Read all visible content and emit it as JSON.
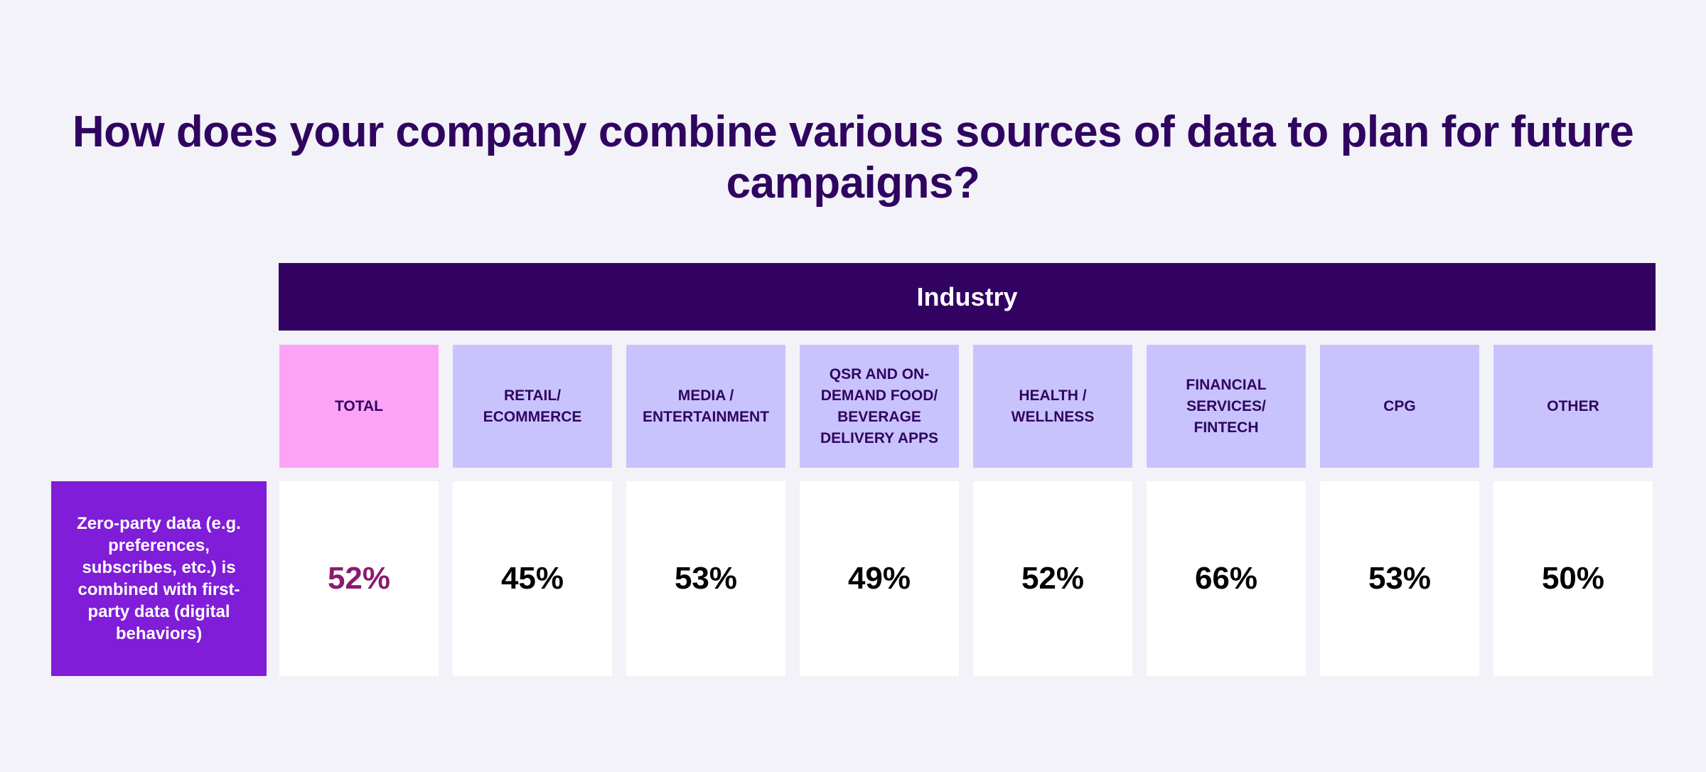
{
  "chart_data": {
    "type": "table",
    "title": "How does your company combine various sources of data to plan for future campaigns?",
    "column_group": "Industry",
    "columns": [
      "TOTAL",
      "RETAIL/\nECOMMERCE",
      "MEDIA /\nENTERTAINMENT",
      "QSR AND ON-\nDEMAND FOOD/\nBEVERAGE\nDELIVERY APPS",
      "HEALTH /\nWELLNESS",
      "FINANCIAL\nSERVICES/\nFINTECH",
      "CPG",
      "OTHER"
    ],
    "rows": [
      {
        "label": "Zero-party data (e.g. preferences, subscribes, etc.) is combined with first-party data (digital behaviors)",
        "values": [
          "52%",
          "45%",
          "53%",
          "49%",
          "52%",
          "66%",
          "53%",
          "50%"
        ]
      }
    ],
    "colors": {
      "title": "#2f0560",
      "group_header": "#310262",
      "total_header": "#fca3f8",
      "industry_header": "#c9c3fd",
      "row_label": "#801dd8",
      "total_value": "#8c1a6e"
    }
  }
}
